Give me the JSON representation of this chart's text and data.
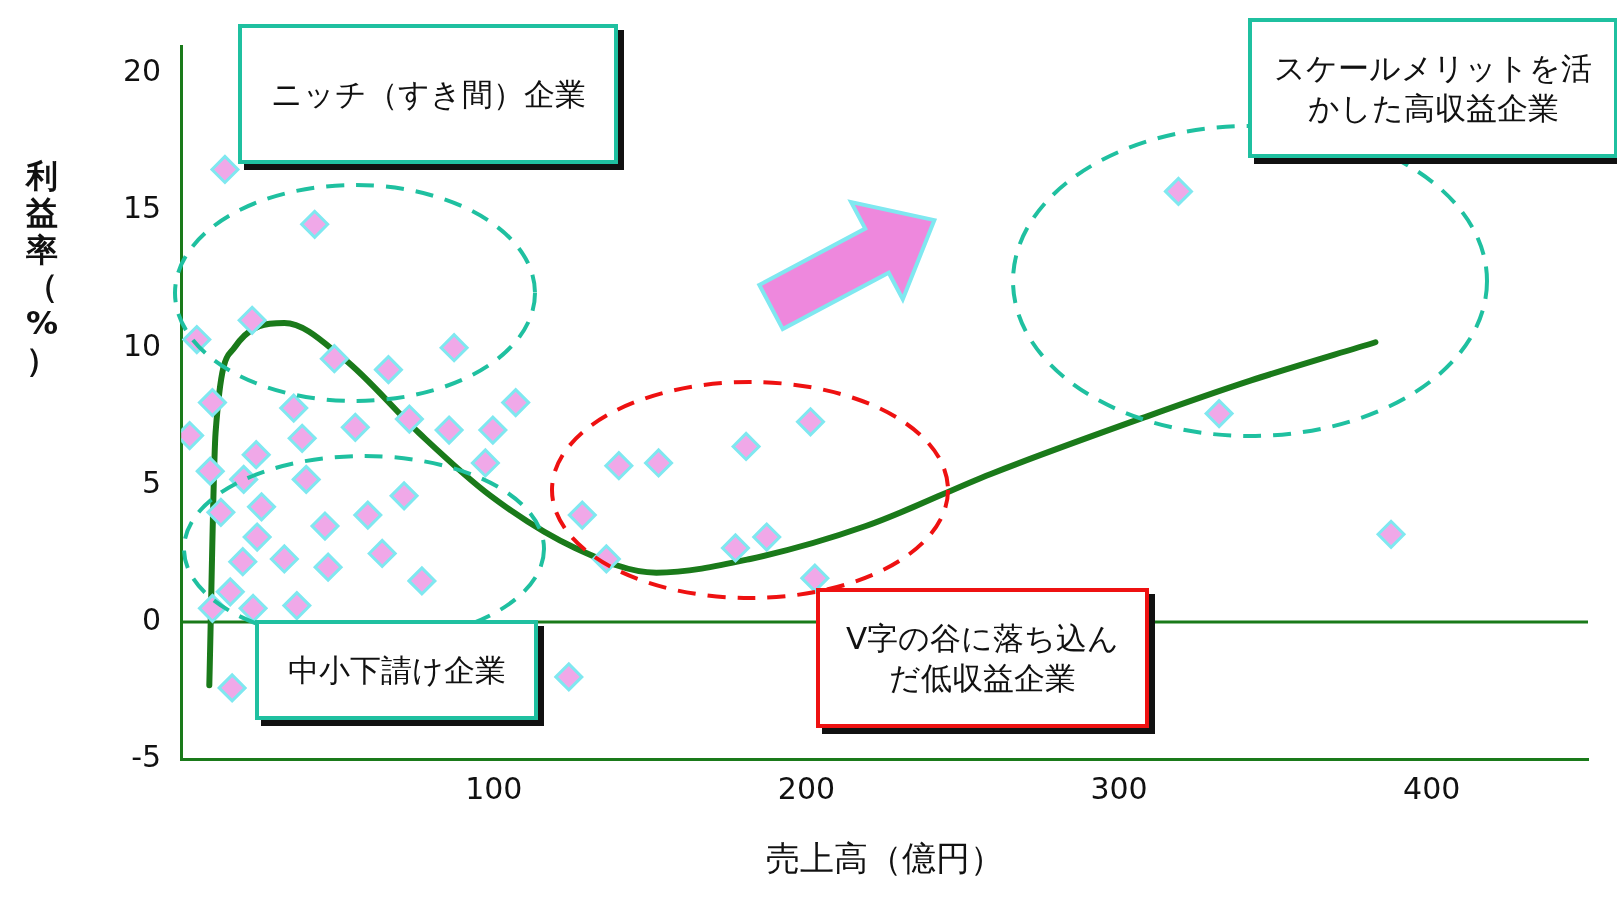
{
  "chart_data": {
    "type": "scatter",
    "xlabel": "売上高（億円）",
    "ylabel": "利益率（%）",
    "xlim": [
      0,
      450
    ],
    "ylim": [
      -5,
      21
    ],
    "xticks": [
      100,
      200,
      300,
      400
    ],
    "yticks": [
      -5,
      0,
      5,
      10,
      15,
      20
    ],
    "grid": false,
    "legend": false,
    "series": [
      {
        "marker": "diamond",
        "color": "#f0a8e8",
        "x": [
          14,
          42.7,
          5,
          22.7,
          49,
          66.3,
          87.3,
          10,
          2.7,
          36,
          38.7,
          55.7,
          73,
          85.7,
          99.7,
          107,
          97.3,
          9.3,
          20,
          24,
          40,
          12.7,
          25.7,
          24.3,
          46,
          59.7,
          71.3,
          19.7,
          33,
          47,
          64.3,
          77,
          15.7,
          10,
          23,
          37,
          16.3,
          124,
          128.3,
          136,
          140,
          152.7,
          180.7,
          177.3,
          187.3,
          201.3,
          202.7,
          319,
          332,
          387
        ],
        "values": [
          16.5,
          14.5,
          10.3,
          11,
          9.6,
          9.2,
          10,
          8,
          6.8,
          7.8,
          6.7,
          7.1,
          7.4,
          7,
          7,
          8,
          5.8,
          5.5,
          5.2,
          6.1,
          5.2,
          4,
          4.2,
          3.1,
          3.5,
          3.9,
          4.6,
          2.2,
          2.3,
          2,
          2.5,
          1.5,
          1.1,
          0.5,
          0.5,
          0.6,
          -2.4,
          -2,
          3.9,
          2.3,
          5.7,
          5.8,
          6.4,
          2.7,
          3.1,
          7.3,
          1.6,
          15.7,
          7.6,
          3.2
        ]
      },
      {
        "type": "line",
        "color": "#1a7a1a",
        "line_style": "solid",
        "x": [
          9,
          11,
          17,
          33,
          52,
          76,
          99,
          126,
          152,
          182,
          219,
          259,
          309,
          342,
          382
        ],
        "values": [
          -2.3,
          6.9,
          10,
          10.9,
          9.6,
          6.9,
          4.6,
          2.7,
          1.8,
          2.3,
          3.5,
          5.4,
          7.5,
          8.8,
          10.2
        ]
      }
    ],
    "ref_lines": [
      {
        "axis": "y",
        "value": 0,
        "color": "#1a7a1a"
      }
    ],
    "annotations": [
      "ニッチ（すき間）企業",
      "スケールメリットを活かした高収益企業",
      "中小下請け企業",
      "V字の谷に落ち込んだ低収益企業"
    ]
  }
}
